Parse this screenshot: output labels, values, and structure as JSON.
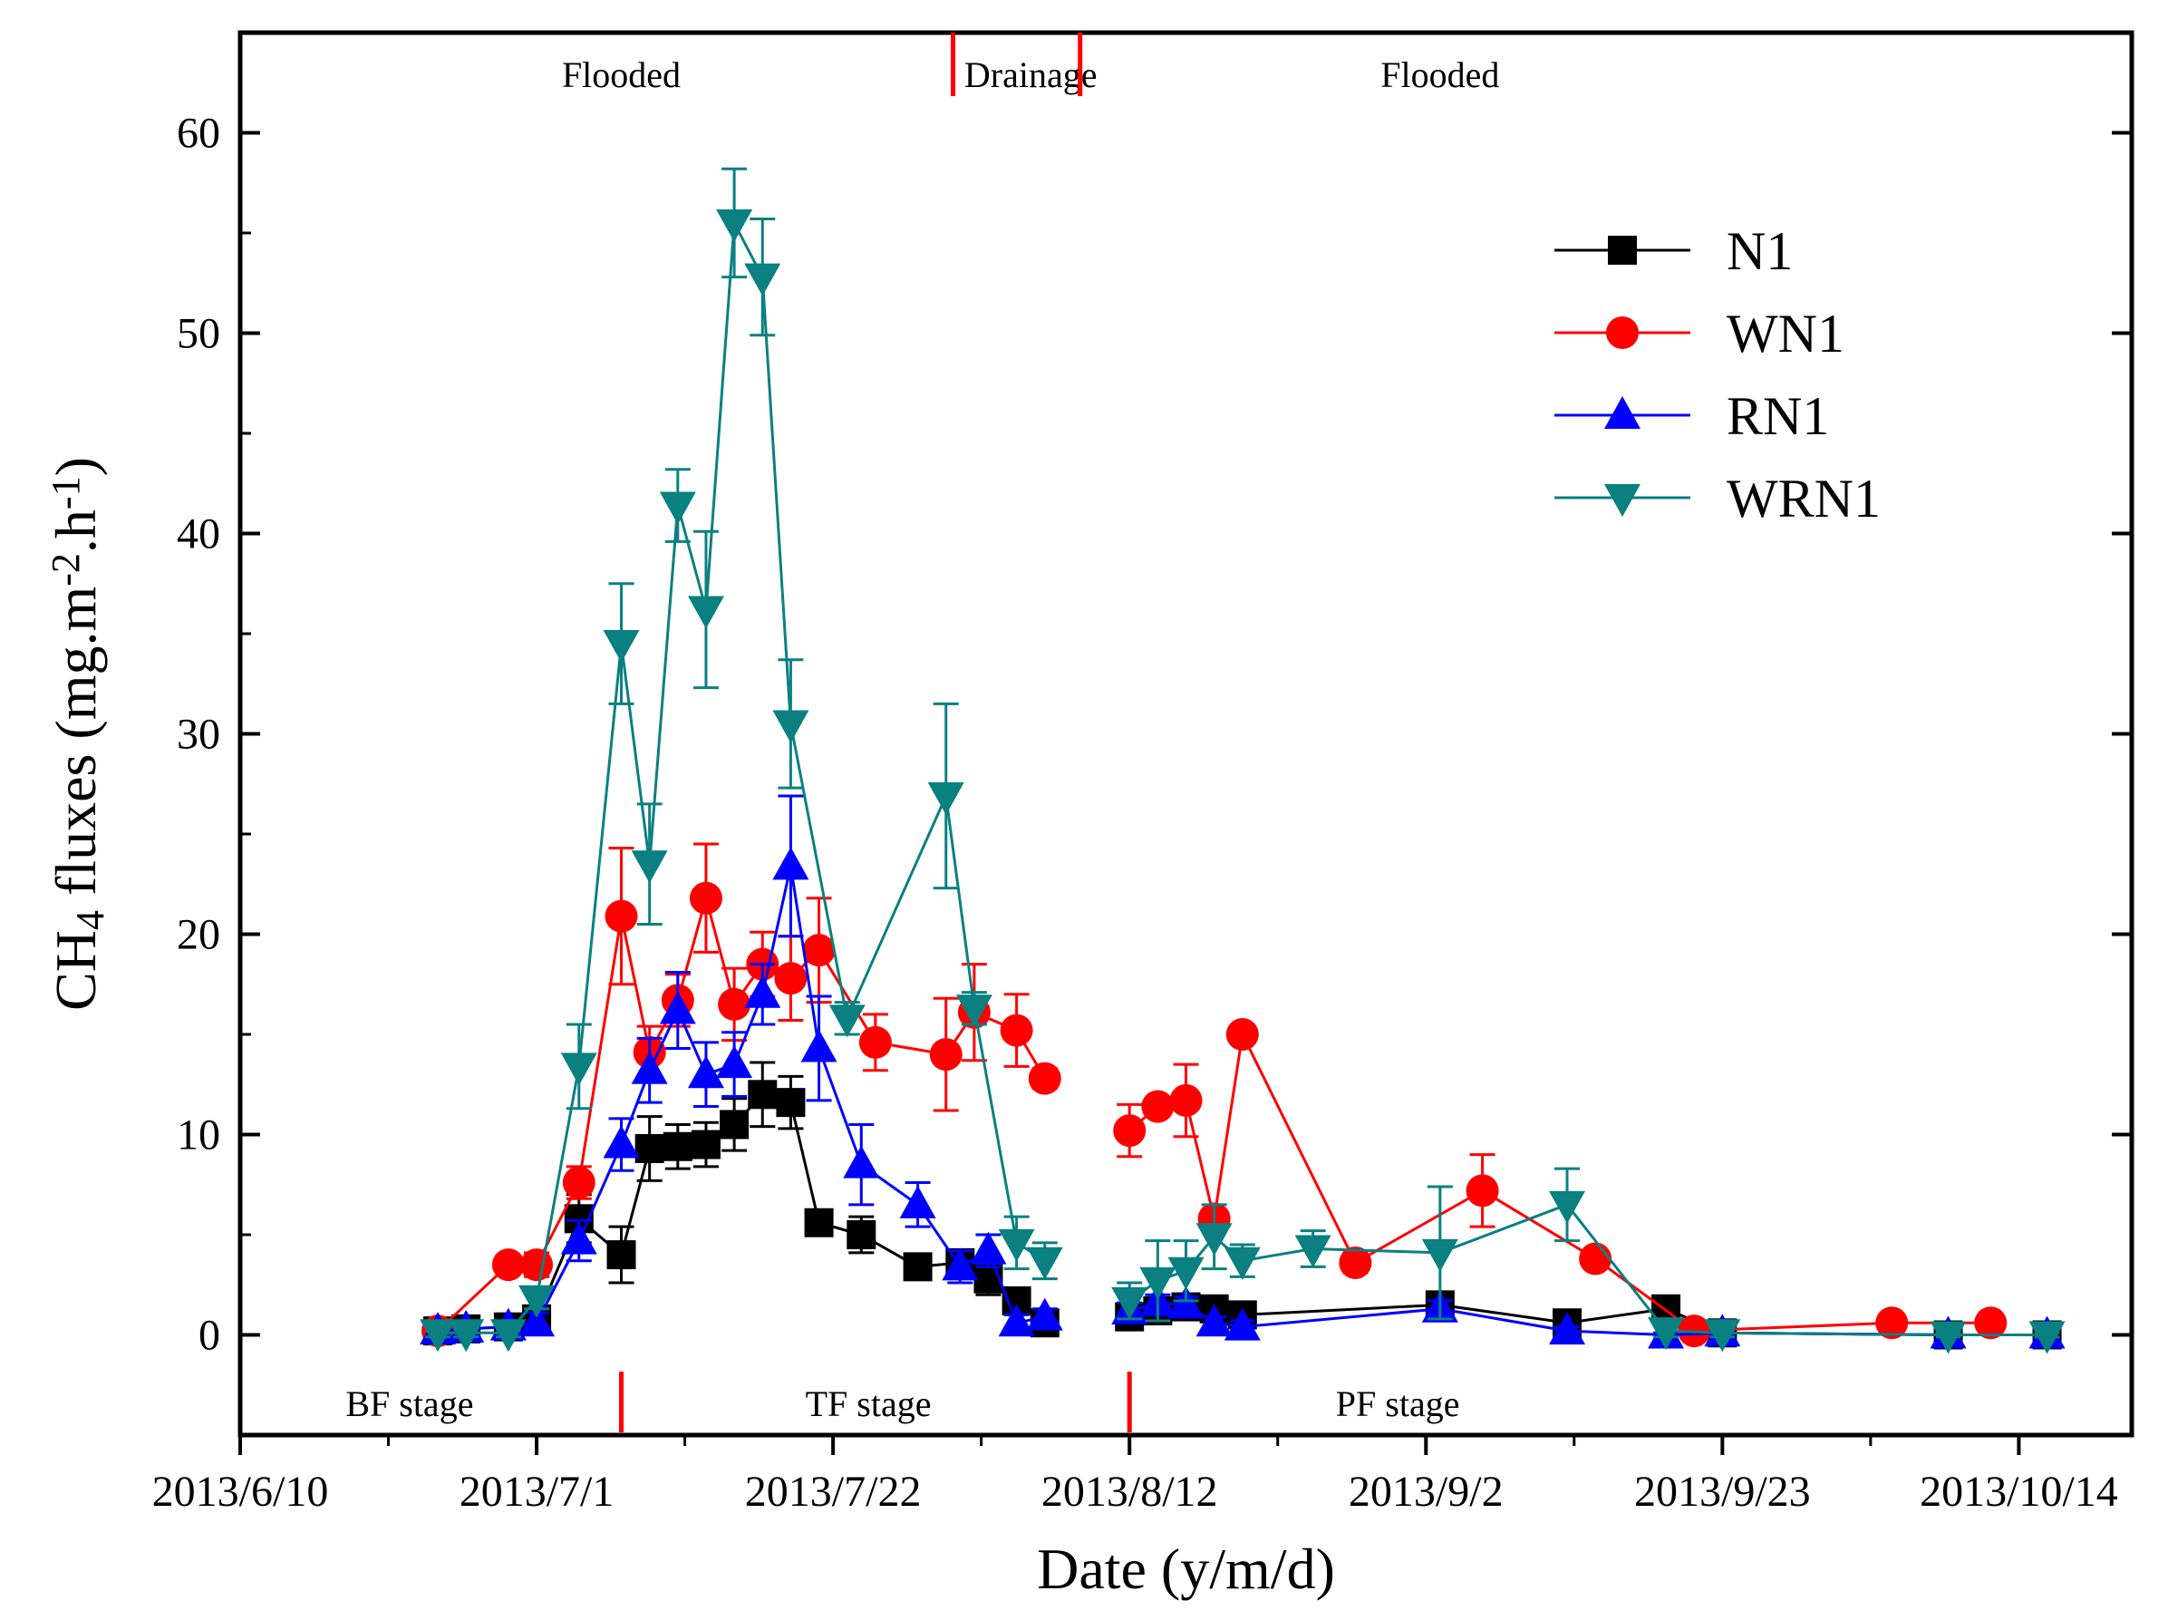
{
  "chart_data": {
    "type": "line",
    "title": "",
    "xlabel": "Date (y/m/d)",
    "ylabel": {
      "base": "CH",
      "sub": "4",
      "mid": " fluxes (mg.m",
      "sup1": "-2",
      "mid2": ".h",
      "sup2": "-1",
      "end": ")"
    },
    "x_unit": "days since 2013/6/10",
    "xlim": [
      0,
      134
    ],
    "ylim": [
      -5,
      65
    ],
    "x_ticks": [
      {
        "value": 0,
        "label": "2013/6/10"
      },
      {
        "value": 21,
        "label": "2013/7/1"
      },
      {
        "value": 42,
        "label": "2013/7/22"
      },
      {
        "value": 63,
        "label": "2013/8/12"
      },
      {
        "value": 84,
        "label": "2013/9/2"
      },
      {
        "value": 105,
        "label": "2013/9/23"
      },
      {
        "value": 126,
        "label": "2013/10/14"
      }
    ],
    "y_ticks": [
      0,
      10,
      20,
      30,
      40,
      50,
      60
    ],
    "annotations": {
      "top": [
        {
          "text": "Flooded",
          "x": 27
        },
        {
          "text": "Drainage",
          "x": 56
        },
        {
          "text": "Flooded",
          "x": 85
        }
      ],
      "top_markers": [
        50.5,
        59.5
      ],
      "bottom": [
        {
          "text": "BF stage",
          "x": 12
        },
        {
          "text": "TF stage",
          "x": 44.5
        },
        {
          "text": "PF stage",
          "x": 82
        }
      ],
      "bottom_markers": [
        27,
        63
      ]
    },
    "series": [
      {
        "name": "N1",
        "color": "#000000",
        "marker": "square",
        "x": [
          14,
          16,
          19,
          21,
          24,
          27,
          29,
          31,
          33,
          35,
          37,
          39,
          41,
          44,
          48,
          51,
          53,
          55,
          57,
          63,
          65,
          67,
          69,
          71,
          85,
          94,
          101,
          105,
          121,
          128
        ],
        "y": [
          0.2,
          0.3,
          0.4,
          0.8,
          5.8,
          4.0,
          9.3,
          9.4,
          9.5,
          10.5,
          12.0,
          11.6,
          5.6,
          5.0,
          3.4,
          3.6,
          2.8,
          1.7,
          0.6,
          0.9,
          1.2,
          1.4,
          1.3,
          1.0,
          1.5,
          0.6,
          1.3,
          0.1,
          0.0,
          0.0
        ],
        "err": [
          0.3,
          0.3,
          0.3,
          0.5,
          1.2,
          1.4,
          1.6,
          1.1,
          1.1,
          1.3,
          1.6,
          1.3,
          0.6,
          0.9,
          0.5,
          0.5,
          0.8,
          0.4,
          0.3,
          0.5,
          0.5,
          0.4,
          0.4,
          0.3,
          0.3,
          0.3,
          0.5,
          0.2,
          0.1,
          0.1
        ]
      },
      {
        "name": "WN1",
        "color": "#ff0000",
        "marker": "circle",
        "x": [
          14,
          19,
          21,
          24,
          27,
          29,
          31,
          33,
          35,
          37,
          39,
          41,
          45,
          50,
          52,
          55,
          57,
          63,
          65,
          67,
          69,
          71,
          79,
          88,
          96,
          103,
          117,
          124
        ],
        "y": [
          0.2,
          3.5,
          3.5,
          7.6,
          20.9,
          14.1,
          16.7,
          21.8,
          16.5,
          18.5,
          17.8,
          19.2,
          14.6,
          14.0,
          16.1,
          15.2,
          12.8,
          10.2,
          11.4,
          11.7,
          5.8,
          15.0,
          3.6,
          7.2,
          3.8,
          0.2,
          0.6,
          0.6
        ],
        "err": [
          0.3,
          0.4,
          0.6,
          0.8,
          3.4,
          1.3,
          1.3,
          2.7,
          1.8,
          1.6,
          2.1,
          2.6,
          1.4,
          2.8,
          2.4,
          1.8,
          0.5,
          1.3,
          0.4,
          1.8,
          0.4,
          0.4,
          0.5,
          1.8,
          0.4,
          0.2,
          0.2,
          0.2
        ]
      },
      {
        "name": "RN1",
        "color": "#0000ff",
        "marker": "triangle-up",
        "x": [
          14,
          16,
          19,
          21,
          24,
          27,
          29,
          31,
          33,
          35,
          37,
          39,
          41,
          44,
          48,
          51,
          53,
          55,
          57,
          63,
          65,
          67,
          69,
          71,
          85,
          94,
          101,
          105,
          121,
          128
        ],
        "y": [
          0.2,
          0.3,
          0.4,
          0.6,
          4.7,
          9.5,
          13.2,
          16.2,
          13.0,
          13.5,
          17.0,
          23.4,
          14.3,
          8.5,
          6.5,
          3.4,
          4.2,
          0.6,
          0.9,
          1.2,
          1.6,
          1.5,
          0.6,
          0.4,
          1.3,
          0.2,
          0.0,
          0.1,
          0.0,
          0.0
        ],
        "err": [
          0.3,
          0.3,
          0.3,
          0.5,
          1.0,
          1.3,
          1.6,
          1.9,
          1.6,
          1.6,
          1.5,
          3.5,
          2.6,
          2.0,
          1.1,
          0.8,
          0.8,
          0.4,
          0.4,
          0.4,
          0.4,
          0.4,
          0.3,
          0.3,
          0.4,
          0.2,
          0.1,
          0.1,
          0.1,
          0.1
        ]
      },
      {
        "name": "WRN1",
        "color": "#0a8080",
        "marker": "triangle-down",
        "x": [
          14,
          16,
          19,
          21,
          24,
          27,
          29,
          31,
          33,
          35,
          37,
          39,
          43,
          50,
          52,
          55,
          57,
          63,
          65,
          67,
          69,
          71,
          76,
          85,
          94,
          101,
          105,
          121,
          128
        ],
        "y": [
          0.1,
          0.1,
          0.1,
          1.8,
          13.4,
          34.5,
          23.5,
          41.4,
          36.2,
          55.5,
          52.8,
          30.5,
          15.8,
          26.9,
          16.3,
          4.6,
          3.7,
          1.7,
          2.7,
          3.2,
          4.9,
          3.7,
          4.3,
          4.1,
          6.5,
          0.2,
          0.1,
          0.0,
          0.0
        ],
        "err": [
          0.2,
          0.2,
          0.2,
          0.5,
          2.1,
          3.0,
          3.0,
          1.8,
          3.9,
          2.7,
          2.9,
          3.2,
          0.8,
          4.6,
          0.8,
          1.3,
          0.9,
          0.9,
          2.0,
          1.5,
          1.6,
          0.8,
          0.9,
          3.3,
          1.8,
          0.3,
          0.2,
          0.1,
          0.1
        ]
      }
    ]
  }
}
